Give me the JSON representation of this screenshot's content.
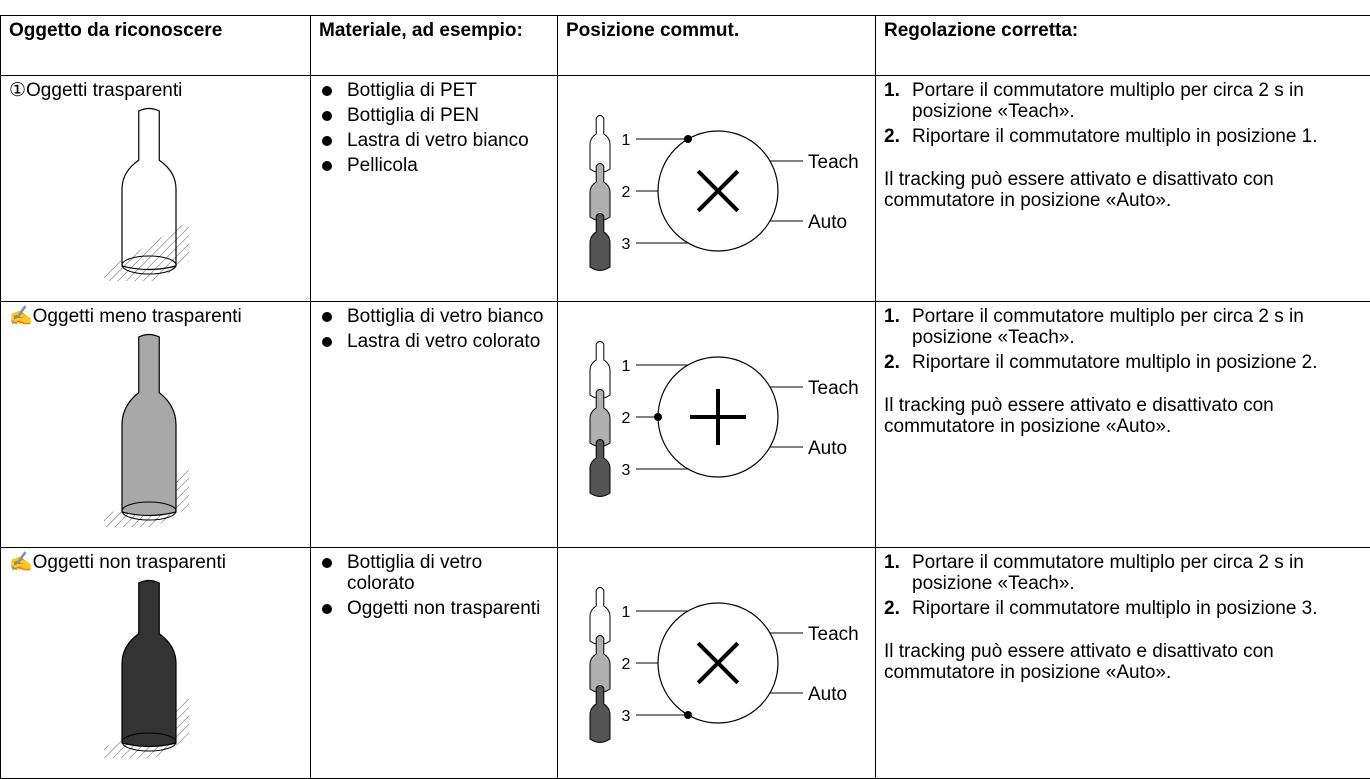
{
  "table": {
    "columns": [
      "Oggetto da riconoscere",
      "Materiale, ad esempio:",
      "Posizione commut.",
      "Regolazione corretta:"
    ],
    "rows": [
      {
        "object": "①Oggetti trasparenti",
        "materials": [
          "Bottiglia di PET",
          "Bottiglia di PEN",
          "Lastra di vetro bianco",
          "Pellicola"
        ],
        "switch": {
          "positions": [
            "1",
            "2",
            "3"
          ],
          "teach": "Teach",
          "auto": "Auto"
        },
        "steps": [
          {
            "number": "1.",
            "text": "Portare il commutatore multiplo per circa 2 s in posizione «Teach»."
          },
          {
            "number": "2.",
            "text": "Riportare il commutatore multiplo in posizione 1."
          }
        ],
        "note": "Il tracking può essere attivato e disattivato con commutatore in posizione «Auto»."
      },
      {
        "object": "✍Oggetti meno trasparenti",
        "materials": [
          "Bottiglia di vetro bianco",
          "Lastra di vetro colorato"
        ],
        "switch": {
          "positions": [
            "1",
            "2",
            "3"
          ],
          "teach": "Teach",
          "auto": "Auto"
        },
        "steps": [
          {
            "number": "1.",
            "text": "Portare il commutatore multiplo per circa 2 s in posizione «Teach»."
          },
          {
            "number": "2.",
            "text": "Riportare il commutatore multiplo in posizione 2."
          }
        ],
        "note": "Il tracking può essere attivato e disattivato con commutatore in posizione «Auto»."
      },
      {
        "object": "✍Oggetti non trasparenti",
        "materials": [
          "Bottiglia di vetro colorato",
          "Oggetti non trasparenti"
        ],
        "switch": {
          "positions": [
            "1",
            "2",
            "3"
          ],
          "teach": "Teach",
          "auto": "Auto"
        },
        "steps": [
          {
            "number": "1.",
            "text": "Portare il commutatore multiplo per circa 2 s in posizione «Teach»."
          },
          {
            "number": "2.",
            "text": "Riportare il commutatore multiplo in posizione 3."
          }
        ],
        "note": "Il tracking può essere attivato e disattivato con commutatore in posizione «Auto»."
      }
    ]
  }
}
